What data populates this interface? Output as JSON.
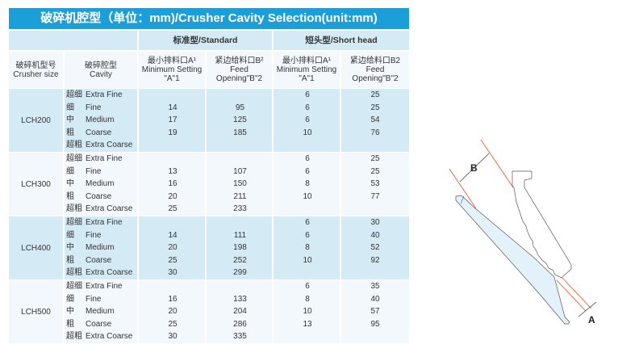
{
  "title": "破碎机腔型（单位：mm)/Crusher Cavity Selection(unit:mm)",
  "groups": {
    "standard": "标准型/Standard",
    "short_head": "短头型/Short head"
  },
  "columns": {
    "size": [
      "破碎机型号",
      "Crusher size"
    ],
    "cavity": [
      "破碎腔型",
      "Cavity"
    ],
    "std_a": [
      "最小排料口A¹",
      "Minimum Setting",
      "\"A\"1"
    ],
    "std_b": [
      "紧边给料口B²",
      "Feed",
      "Opening\"B\"2"
    ],
    "sh_a": [
      "最小排料口A¹",
      "Minimum Setting",
      "\"A\"1"
    ],
    "sh_b": [
      "紧边给料口B2",
      "Feed",
      "Opening\"B\"2"
    ]
  },
  "cavities": [
    [
      "超细",
      "Extra Fine"
    ],
    [
      "细",
      "Fine"
    ],
    [
      "中",
      "Medium"
    ],
    [
      "粗",
      "Coarse"
    ],
    [
      "超粗",
      "Extra Coarse"
    ]
  ],
  "blocks": [
    {
      "size": "LCH200",
      "rows": [
        [
          "",
          "",
          "6",
          "25"
        ],
        [
          "14",
          "95",
          "6",
          "25"
        ],
        [
          "17",
          "125",
          "6",
          "54"
        ],
        [
          "19",
          "185",
          "10",
          "76"
        ],
        [
          "",
          "",
          "",
          ""
        ]
      ]
    },
    {
      "size": "LCH300",
      "rows": [
        [
          "",
          "",
          "6",
          "25"
        ],
        [
          "13",
          "107",
          "6",
          "25"
        ],
        [
          "16",
          "150",
          "8",
          "53"
        ],
        [
          "20",
          "211",
          "10",
          "77"
        ],
        [
          "25",
          "233",
          "",
          ""
        ]
      ]
    },
    {
      "size": "LCH400",
      "rows": [
        [
          "",
          "",
          "6",
          "30"
        ],
        [
          "14",
          "111",
          "6",
          "40"
        ],
        [
          "20",
          "198",
          "8",
          "52"
        ],
        [
          "25",
          "252",
          "10",
          "92"
        ],
        [
          "30",
          "299",
          "",
          ""
        ]
      ]
    },
    {
      "size": "LCH500",
      "rows": [
        [
          "",
          "",
          "6",
          "35"
        ],
        [
          "16",
          "133",
          "8",
          "40"
        ],
        [
          "20",
          "204",
          "10",
          "57"
        ],
        [
          "25",
          "286",
          "13",
          "95"
        ],
        [
          "30",
          "335",
          "",
          ""
        ]
      ]
    }
  ],
  "diagram": {
    "label_a": "A",
    "label_b": "B",
    "line_color": "#f04a23",
    "jaw_fill": "#e3f1fa"
  },
  "colors": {
    "header": "#1c9fd9",
    "row_blue": "#d4ebf6",
    "row_white": "#f2f8fc"
  }
}
